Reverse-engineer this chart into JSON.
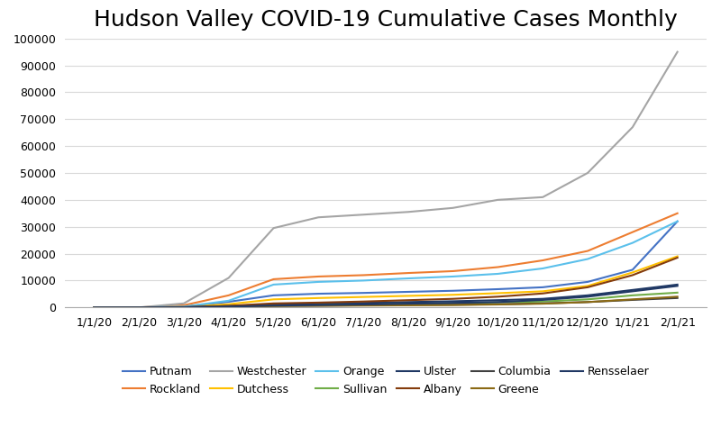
{
  "title": "Hudson Valley COVID-19 Cumulative Cases Monthly",
  "x_labels": [
    "1/1/20",
    "2/1/20",
    "3/1/20",
    "4/1/20",
    "5/1/20",
    "6/1/20",
    "7/1/20",
    "8/1/20",
    "9/1/20",
    "10/1/20",
    "11/1/20",
    "12/1/20",
    "1/1/21",
    "2/1/21"
  ],
  "series_order": [
    "Putnam",
    "Rockland",
    "Westchester",
    "Dutchess",
    "Orange",
    "Sullivan",
    "Ulster",
    "Albany",
    "Columbia",
    "Greene",
    "Rensselaer"
  ],
  "series": {
    "Putnam": [
      0,
      0,
      200,
      2100,
      4500,
      5100,
      5400,
      5800,
      6200,
      6800,
      7500,
      9500,
      14000,
      32000
    ],
    "Rockland": [
      0,
      0,
      800,
      4500,
      10500,
      11500,
      12000,
      12800,
      13500,
      15000,
      17500,
      21000,
      28000,
      35000
    ],
    "Westchester": [
      0,
      0,
      1500,
      11000,
      29500,
      33500,
      34500,
      35500,
      37000,
      40000,
      41000,
      50000,
      67000,
      95000
    ],
    "Dutchess": [
      0,
      0,
      150,
      1200,
      3000,
      3500,
      3900,
      4300,
      4700,
      5300,
      6000,
      8000,
      13000,
      19000
    ],
    "Orange": [
      0,
      0,
      300,
      2500,
      8500,
      9500,
      10000,
      10800,
      11500,
      12500,
      14500,
      18000,
      24000,
      32000
    ],
    "Sullivan": [
      0,
      0,
      50,
      400,
      900,
      1100,
      1200,
      1400,
      1600,
      1900,
      2200,
      3000,
      4500,
      5500
    ],
    "Ulster": [
      0,
      0,
      80,
      500,
      1200,
      1500,
      1700,
      2000,
      2300,
      2700,
      3200,
      4500,
      6500,
      8500
    ],
    "Albany": [
      0,
      0,
      100,
      600,
      1500,
      1800,
      2200,
      2700,
      3200,
      4000,
      5200,
      7500,
      12000,
      18500
    ],
    "Columbia": [
      0,
      0,
      40,
      250,
      600,
      700,
      800,
      900,
      1000,
      1200,
      1500,
      2000,
      2800,
      3500
    ],
    "Greene": [
      0,
      0,
      30,
      200,
      500,
      600,
      700,
      800,
      900,
      1100,
      1400,
      2000,
      3000,
      4000
    ],
    "Rensselaer": [
      0,
      0,
      50,
      300,
      700,
      900,
      1100,
      1400,
      1700,
      2000,
      2800,
      4000,
      6000,
      8000
    ]
  },
  "colors": {
    "Putnam": "#4472C4",
    "Rockland": "#ED7D31",
    "Westchester": "#A5A5A5",
    "Dutchess": "#FFC000",
    "Orange": "#5BC0EB",
    "Sullivan": "#70AD47",
    "Ulster": "#1F3864",
    "Albany": "#843C0C",
    "Columbia": "#404040",
    "Greene": "#8B6914",
    "Rensselaer": "#203864"
  },
  "ylim": [
    0,
    100000
  ],
  "yticks": [
    0,
    10000,
    20000,
    30000,
    40000,
    50000,
    60000,
    70000,
    80000,
    90000,
    100000
  ],
  "ytick_labels": [
    "0",
    "10000",
    "20000",
    "30000",
    "40000",
    "50000",
    "60000",
    "70000",
    "80000",
    "90000",
    "100000"
  ],
  "background_color": "#FFFFFF",
  "grid_color": "#D9D9D9",
  "title_fontsize": 18,
  "tick_fontsize": 9,
  "legend_fontsize": 9
}
